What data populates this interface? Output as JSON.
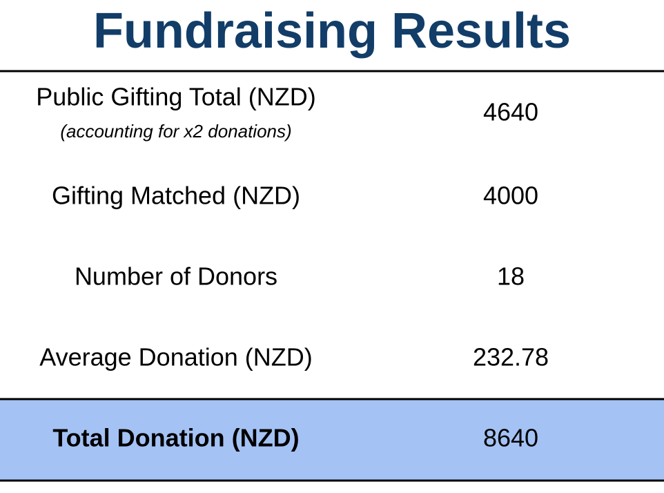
{
  "header": {
    "title": "Fundraising Results"
  },
  "table": {
    "rows": [
      {
        "label": "Public Gifting Total (NZD)",
        "note": "(accounting for x2 donations)",
        "value": 4640
      },
      {
        "label": "Gifting Matched (NZD)",
        "value": 4000
      },
      {
        "label": "Number of Donors",
        "value": 18
      },
      {
        "label": "Average Donation (NZD)",
        "value": 232.78
      }
    ],
    "total": {
      "label": "Total Donation (NZD)",
      "value": 8640
    }
  }
}
